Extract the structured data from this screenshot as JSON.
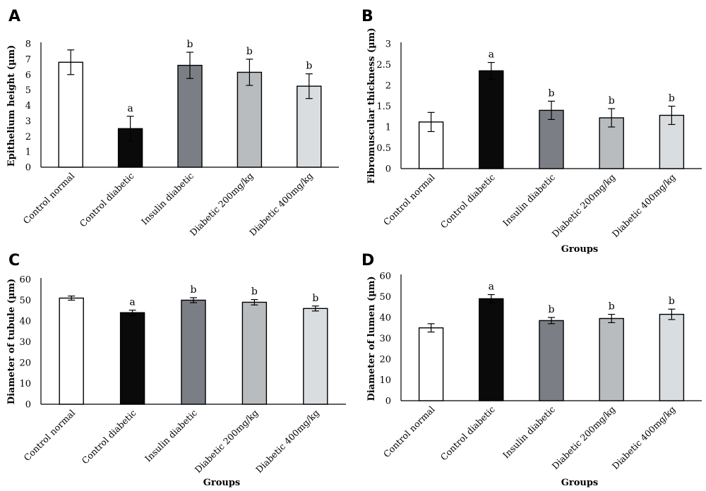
{
  "palette": [
    "#ffffff",
    "#0a0a0a",
    "#7b7f85",
    "#b9bcbf",
    "#dadde0"
  ],
  "chart_data": [
    {
      "type": "bar",
      "panel": "A",
      "title": "",
      "xlabel": "",
      "ylabel": "Epithelium height (µm)",
      "ylim": [
        0,
        8
      ],
      "yticks": [
        0,
        1,
        2,
        3,
        4,
        5,
        6,
        7,
        8
      ],
      "categories": [
        "Control normal",
        "Control diabetic",
        "Insulin diabetic",
        "Diabetic 200mg/kg",
        "Diabetic 400mg/kg"
      ],
      "values": [
        6.8,
        2.5,
        6.6,
        6.15,
        5.25
      ],
      "errors": [
        0.8,
        0.8,
        0.85,
        0.85,
        0.8
      ],
      "annotations": [
        "",
        "a",
        "b",
        "b",
        "b"
      ],
      "grid": false
    },
    {
      "type": "bar",
      "panel": "B",
      "title": "",
      "xlabel": "Groups",
      "ylabel": "Fibromuscular thickness (µm)",
      "ylim": [
        0,
        3
      ],
      "yticks": [
        0,
        0.5,
        1,
        1.5,
        2,
        2.5,
        3
      ],
      "categories": [
        "Control normal",
        "Control diabetic",
        "Insulin diabetic",
        "Diabetic 200mg/kg",
        "Diabetic 400mg/kg"
      ],
      "values": [
        1.12,
        2.35,
        1.4,
        1.22,
        1.28
      ],
      "errors": [
        0.23,
        0.2,
        0.22,
        0.22,
        0.22
      ],
      "annotations": [
        "",
        "a",
        "b",
        "b",
        "b"
      ],
      "grid": false
    },
    {
      "type": "bar",
      "panel": "C",
      "title": "",
      "xlabel": "Groups",
      "ylabel": "Diameter of tubule (µm)",
      "ylim": [
        0,
        60
      ],
      "yticks": [
        0,
        10,
        20,
        30,
        40,
        50,
        60
      ],
      "categories": [
        "Control normal",
        "Control diabetic",
        "Insulin diabetic",
        "Diabetic 200mg/kg",
        "Diabetic 400mg/kg"
      ],
      "values": [
        51,
        44,
        50,
        49,
        46
      ],
      "errors": [
        1,
        1.2,
        1.2,
        1.3,
        1.2
      ],
      "annotations": [
        "",
        "a",
        "b",
        "b",
        "b"
      ],
      "grid": false
    },
    {
      "type": "bar",
      "panel": "D",
      "title": "",
      "xlabel": "Groups",
      "ylabel": "Diameter of lumen (µm)",
      "ylim": [
        0,
        60
      ],
      "yticks": [
        0,
        10,
        20,
        30,
        40,
        50,
        60
      ],
      "categories": [
        "Control normal",
        "Control diabetic",
        "Insulin diabetic",
        "Diabetic 200mg/kg",
        "Diabetic 400mg/kg"
      ],
      "values": [
        35,
        49,
        38.5,
        39.5,
        41.5
      ],
      "errors": [
        2,
        2,
        1.5,
        2,
        2.5
      ],
      "annotations": [
        "",
        "a",
        "b",
        "b",
        "b"
      ],
      "grid": false
    }
  ]
}
